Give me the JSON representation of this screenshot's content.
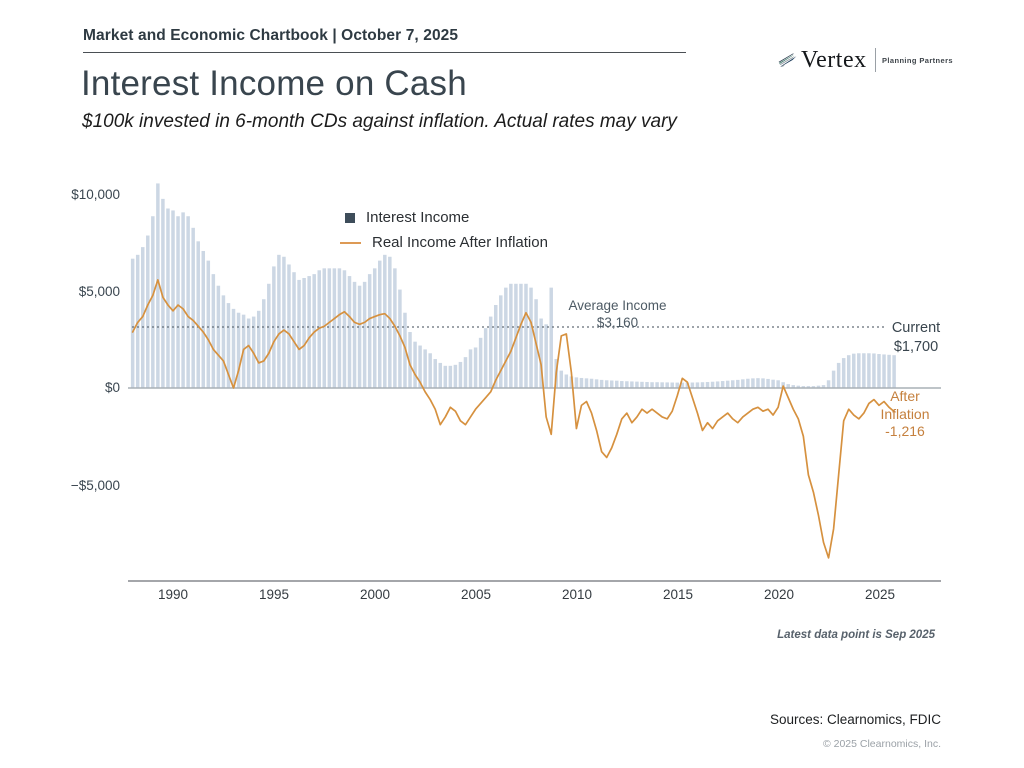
{
  "page": {
    "header": "Market and Economic Chartbook | October 7, 2025",
    "title": "Interest Income on Cash",
    "subtitle": "$100k invested in 6-month CDs against inflation. Actual rates may vary",
    "logo": {
      "name": "Vertex",
      "tagline": "Planning Partners"
    },
    "footnote": "Latest data point is Sep 2025",
    "sources": "Sources: Clearnomics, FDIC",
    "copyright": "© 2025 Clearnomics, Inc."
  },
  "chart_data": {
    "type": "bar",
    "title": "Interest Income on Cash",
    "subtitle": "$100k invested in 6-month CDs against inflation. Actual rates may vary",
    "x_axis": {
      "unit": "year (quarterly points)",
      "start": 1988.0,
      "step": 0.25,
      "tick_years": [
        1990,
        1995,
        2000,
        2005,
        2010,
        2015,
        2020,
        2025
      ],
      "tick_labels": [
        "1990",
        "1995",
        "2000",
        "2005",
        "2010",
        "2015",
        "2020",
        "2025"
      ],
      "xlim": [
        1987.8,
        2028
      ]
    },
    "y_axis": {
      "unit": "USD per year",
      "tick_values": [
        10000,
        5000,
        0,
        -5000
      ],
      "tick_labels": [
        "$10,000",
        "$5,000",
        "$0",
        "−$5,000"
      ],
      "ylim": [
        -10000,
        11000
      ]
    },
    "grid": false,
    "legend_position": "upper center-left",
    "legend": [
      {
        "label": "Interest Income",
        "marker": "square",
        "color": "#3e4d5a"
      },
      {
        "label": "Real Income After Inflation",
        "marker": "line",
        "color": "#dd9a55"
      }
    ],
    "average_line": {
      "value": 3160,
      "style": "dotted",
      "label_line1": "Average Income",
      "label_line2": "$3,160"
    },
    "annotations": {
      "current_label": "Current",
      "current_value": "$1,700",
      "after_line1": "After",
      "after_line2": "Inflation",
      "after_value": "-1,216"
    },
    "series": [
      {
        "name": "Interest Income",
        "type": "bar",
        "color": "#ccd7e4",
        "values": [
          6700,
          6900,
          7300,
          7900,
          8900,
          10600,
          9800,
          9300,
          9200,
          8900,
          9100,
          8900,
          8300,
          7600,
          7100,
          6600,
          5900,
          5300,
          4800,
          4400,
          4100,
          3900,
          3800,
          3600,
          3700,
          4000,
          4600,
          5400,
          6300,
          6900,
          6800,
          6400,
          6000,
          5600,
          5700,
          5800,
          5900,
          6100,
          6200,
          6200,
          6200,
          6200,
          6100,
          5800,
          5500,
          5300,
          5500,
          5900,
          6200,
          6600,
          6900,
          6800,
          6200,
          5100,
          3900,
          2900,
          2400,
          2200,
          2000,
          1800,
          1500,
          1300,
          1150,
          1150,
          1200,
          1350,
          1600,
          2000,
          2100,
          2600,
          3100,
          3700,
          4300,
          4800,
          5200,
          5400,
          5400,
          5400,
          5400,
          5200,
          4600,
          3600,
          3300,
          5200,
          1500,
          900,
          700,
          600,
          550,
          520,
          500,
          480,
          450,
          420,
          400,
          390,
          380,
          360,
          350,
          340,
          330,
          320,
          310,
          300,
          300,
          295,
          290,
          285,
          280,
          280,
          280,
          285,
          290,
          300,
          310,
          325,
          340,
          360,
          380,
          400,
          420,
          450,
          480,
          500,
          510,
          500,
          470,
          430,
          400,
          300,
          200,
          150,
          120,
          100,
          100,
          100,
          120,
          150,
          400,
          900,
          1300,
          1550,
          1700,
          1780,
          1800,
          1800,
          1800,
          1790,
          1760,
          1740,
          1720,
          1700
        ]
      },
      {
        "name": "Real Income After Inflation",
        "type": "line",
        "color": "#d6913f",
        "values": [
          2900,
          3400,
          3700,
          4300,
          4800,
          5600,
          4700,
          4300,
          4000,
          4300,
          4100,
          3700,
          3500,
          3200,
          2900,
          2500,
          2000,
          1700,
          1400,
          700,
          0,
          900,
          2000,
          2200,
          1800,
          1300,
          1400,
          1800,
          2400,
          2800,
          3000,
          2800,
          2400,
          2000,
          2200,
          2600,
          2900,
          3100,
          3200,
          3400,
          3600,
          3800,
          3950,
          3700,
          3400,
          3300,
          3400,
          3600,
          3700,
          3800,
          3850,
          3600,
          3200,
          2700,
          2100,
          1200,
          700,
          300,
          -200,
          -600,
          -1100,
          -1900,
          -1500,
          -1000,
          -1200,
          -1700,
          -1900,
          -1500,
          -1100,
          -800,
          -500,
          -200,
          400,
          900,
          1400,
          1900,
          2600,
          3300,
          3900,
          3400,
          2300,
          1200,
          -1500,
          -2400,
          800,
          2700,
          2800,
          800,
          -2100,
          -900,
          -700,
          -1300,
          -2200,
          -3300,
          -3600,
          -3100,
          -2400,
          -1600,
          -1300,
          -1800,
          -1500,
          -1100,
          -1300,
          -1100,
          -1300,
          -1500,
          -1600,
          -1200,
          -400,
          500,
          300,
          -500,
          -1300,
          -2200,
          -1800,
          -2100,
          -1700,
          -1500,
          -1300,
          -1600,
          -1800,
          -1500,
          -1300,
          -1100,
          -1000,
          -1200,
          -1100,
          -1400,
          -1000,
          100,
          -500,
          -1100,
          -1600,
          -2500,
          -4500,
          -5400,
          -6600,
          -8000,
          -8800,
          -7300,
          -4500,
          -1700,
          -1100,
          -1400,
          -1600,
          -1300,
          -800,
          -600,
          -900,
          -700,
          -1000,
          -1216
        ]
      }
    ],
    "latest_data_point": "Sep 2025"
  }
}
